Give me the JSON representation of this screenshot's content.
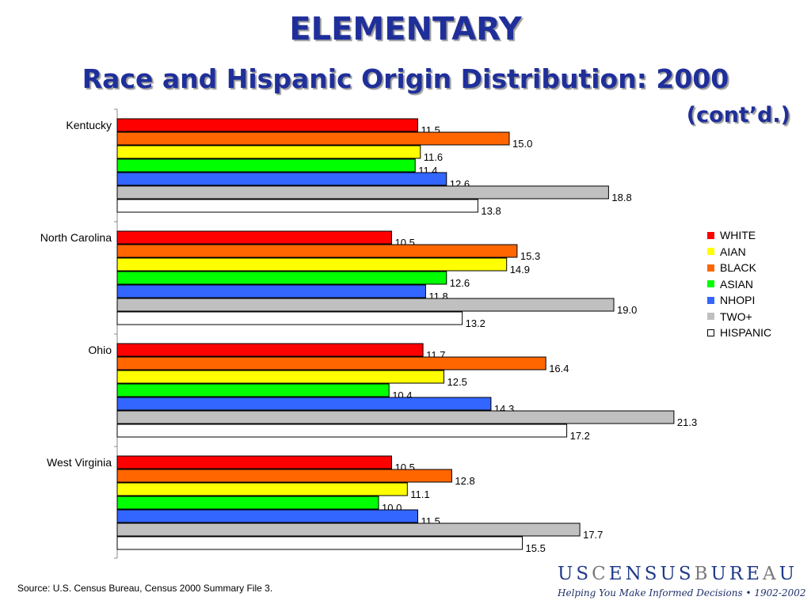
{
  "header": {
    "title": "ELEMENTARY",
    "subtitle": "Race and Hispanic Origin Distribution:  2000",
    "continuation": "(cont’d.)"
  },
  "chart_data": {
    "type": "bar",
    "orientation": "horizontal",
    "categories": [
      "Kentucky",
      "North Carolina",
      "Ohio",
      "West Virginia"
    ],
    "series": [
      {
        "name": "WHITE",
        "color": "#ff0000",
        "values": [
          11.5,
          10.5,
          11.7,
          10.5
        ],
        "labels": [
          "11.5",
          "10.5",
          "11.7",
          "10.5"
        ]
      },
      {
        "name": "BLACK",
        "color": "#ff6600",
        "values": [
          15.0,
          15.3,
          16.4,
          12.8
        ],
        "labels": [
          "15.0",
          "15.3",
          "16.4",
          "12.8"
        ]
      },
      {
        "name": "AIAN",
        "color": "#ffff00",
        "values": [
          11.6,
          14.9,
          12.5,
          11.1
        ],
        "labels": [
          "11.6",
          "14.9",
          "12.5",
          "11.1"
        ]
      },
      {
        "name": "ASIAN",
        "color": "#00ff00",
        "values": [
          11.4,
          12.6,
          10.4,
          10.0
        ],
        "labels": [
          "11.4",
          "12.6",
          "10.4",
          "10.0"
        ]
      },
      {
        "name": "NHOPI",
        "color": "#3366ff",
        "values": [
          12.6,
          11.8,
          14.3,
          11.5
        ],
        "labels": [
          "12.6",
          "11.8",
          "14.3",
          "11.5"
        ]
      },
      {
        "name": "TWO+",
        "color": "#c0c0c0",
        "values": [
          18.8,
          19.0,
          21.3,
          17.7
        ],
        "labels": [
          "18.8",
          "19.0",
          "21.3",
          "17.7"
        ]
      },
      {
        "name": "HISPANIC",
        "color": "#ffffff",
        "values": [
          13.8,
          13.2,
          17.2,
          15.5
        ],
        "labels": [
          "13.8",
          "13.2",
          "17.2",
          "15.5"
        ]
      }
    ],
    "xlim": [
      0,
      24
    ],
    "grid": false,
    "legend_position": "right"
  },
  "legend": {
    "items": [
      {
        "label": "WHITE",
        "color": "#ff0000"
      },
      {
        "label": "AIAN",
        "color": "#ffff00"
      },
      {
        "label": "BLACK",
        "color": "#ff6600"
      },
      {
        "label": "ASIAN",
        "color": "#00ff00"
      },
      {
        "label": "NHOPI",
        "color": "#3366ff"
      },
      {
        "label": "TWO+",
        "color": "#c0c0c0"
      },
      {
        "label": "HISPANIC",
        "color": "#ffffff"
      }
    ]
  },
  "footer": {
    "source": "Source:  U.S. Census Bureau, Census 2000 Summary File 3.",
    "logo_text": "USCENSUSBUREAU",
    "tagline": "Helping You Make Informed Decisions • 1902-2002"
  }
}
